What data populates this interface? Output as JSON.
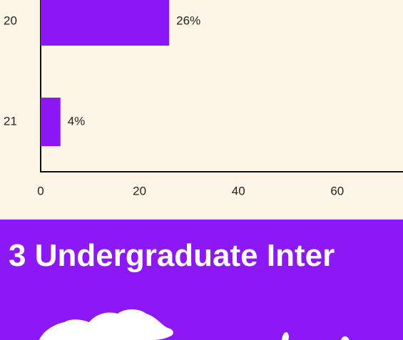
{
  "chart_data": {
    "type": "bar",
    "orientation": "horizontal",
    "categories": [
      "20",
      "21"
    ],
    "values": [
      26,
      4
    ],
    "value_labels": [
      "26%",
      "4%"
    ],
    "color": "#8b17f7",
    "xlim": [
      0,
      80
    ],
    "xticks": [
      0,
      20,
      40,
      60
    ]
  },
  "banner": {
    "title": "3 Undergraduate Inter"
  }
}
